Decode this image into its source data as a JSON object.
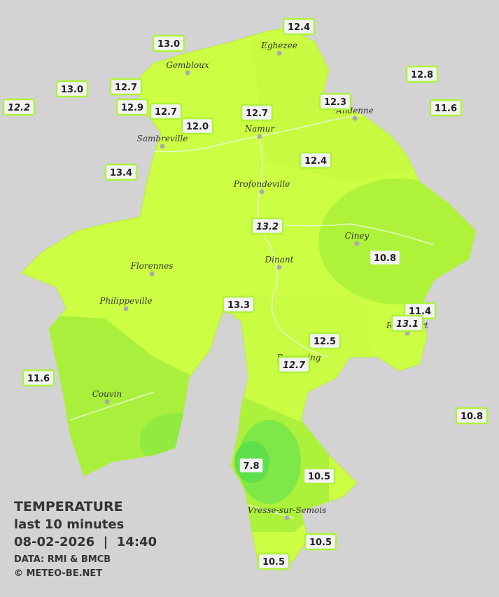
{
  "legend": {
    "title": "TEMPERATURE",
    "subtitle": "last 10 minutes",
    "datetime": "08-02-2026  |  14:40",
    "source": "DATA: RMI & BMCB",
    "credit": "© METEO-BE.NET"
  },
  "cities": [
    {
      "name": "Eghezee"
    },
    {
      "name": "Gembloux"
    },
    {
      "name": "Andenne"
    },
    {
      "name": "Namur"
    },
    {
      "name": "Sambreville"
    },
    {
      "name": "Profondeville"
    },
    {
      "name": "Ciney"
    },
    {
      "name": "Dinant"
    },
    {
      "name": "Florennes"
    },
    {
      "name": "Philippeville"
    },
    {
      "name": "Couvin"
    },
    {
      "name": "Vresse-sur-Semois"
    },
    {
      "name": "Beauraing"
    },
    {
      "name": "Rochefort"
    }
  ],
  "stations": [
    {
      "label": "12.4"
    },
    {
      "label": "13.0"
    },
    {
      "label": "13.0"
    },
    {
      "label": "12.7"
    },
    {
      "label": "12.8"
    },
    {
      "label": "12.2",
      "italic": true
    },
    {
      "label": "12.9"
    },
    {
      "label": "12.7"
    },
    {
      "label": "12.3"
    },
    {
      "label": "12.7"
    },
    {
      "label": "11.6"
    },
    {
      "label": "12.0"
    },
    {
      "label": "12.4"
    },
    {
      "label": "13.4"
    },
    {
      "label": "13.2",
      "italic": true
    },
    {
      "label": "10.8"
    },
    {
      "label": "11.4"
    },
    {
      "label": "13.1",
      "italic": true
    },
    {
      "label": "13.3"
    },
    {
      "label": "12.5"
    },
    {
      "label": "12.7",
      "italic": true
    },
    {
      "label": "11.6"
    },
    {
      "label": "10.8"
    },
    {
      "label": "7.8"
    },
    {
      "label": "10.5"
    },
    {
      "label": "10.5"
    },
    {
      "label": "10.5"
    }
  ]
}
